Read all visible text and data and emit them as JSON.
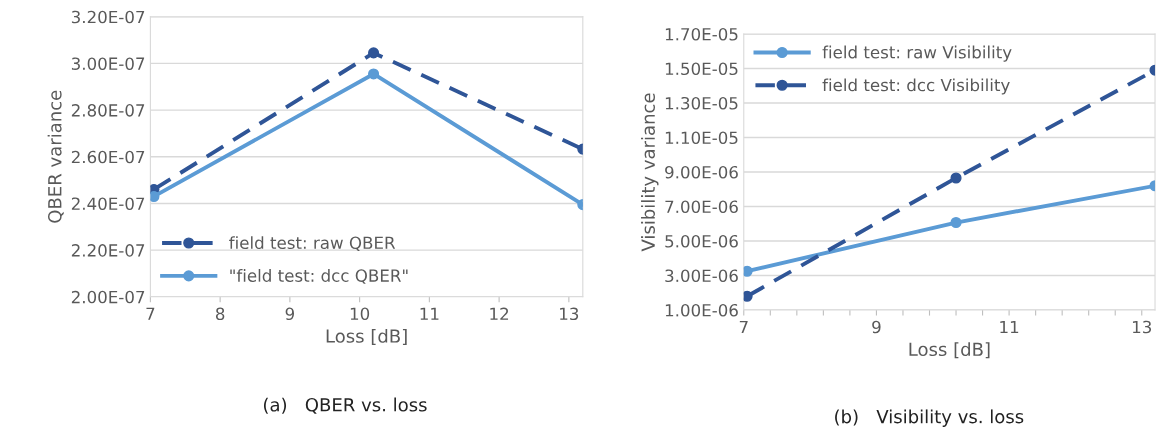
{
  "chart_data": [
    {
      "type": "line",
      "xlabel": "Loss [dB]",
      "ylabel": "QBER variance",
      "annotations": [
        "(a)   QBER vs. loss"
      ],
      "xlim": [
        7,
        13.2
      ],
      "xticks": [
        7,
        8,
        9,
        10,
        11,
        12,
        13
      ],
      "ylim": [
        2e-07,
        3.2e-07
      ],
      "yticks": [
        {
          "value": 2e-07,
          "label": "2.00E-07"
        },
        {
          "value": 2.2e-07,
          "label": "2.20E-07"
        },
        {
          "value": 2.4e-07,
          "label": "2.40E-07"
        },
        {
          "value": 2.6e-07,
          "label": "2.60E-07"
        },
        {
          "value": 2.8e-07,
          "label": "2.80E-07"
        },
        {
          "value": 3e-07,
          "label": "3.00E-07"
        },
        {
          "value": 3.2e-07,
          "label": "3.20E-07"
        }
      ],
      "grid": "y",
      "legend": "bottom left",
      "marker": "circle",
      "series": [
        {
          "name": "field test: raw QBER",
          "color": "#2f5597",
          "line_style": "dashed",
          "x": [
            7.05,
            10.2,
            13.2
          ],
          "values": [
            2.46e-07,
            3.045e-07,
            2.633e-07
          ]
        },
        {
          "name": "\"field test: dcc QBER\"",
          "color": "#5b9bd5",
          "line_style": "solid",
          "x": [
            7.05,
            10.2,
            13.2
          ],
          "values": [
            2.43e-07,
            2.955e-07,
            2.395e-07
          ]
        }
      ]
    },
    {
      "type": "line",
      "xlabel": "Loss [dB]",
      "ylabel": "Visibility variance",
      "annotations": [
        "(b)   Visibility vs. loss"
      ],
      "xlim": [
        7,
        13.2
      ],
      "xticks": [
        7,
        {
          "value": 7.4,
          "label": null
        },
        {
          "value": 7.8,
          "label": null
        },
        {
          "value": 8.2,
          "label": null
        },
        {
          "value": 8.6,
          "label": null
        },
        9,
        {
          "value": 9.4,
          "label": null
        },
        {
          "value": 9.8,
          "label": null
        },
        {
          "value": 10.2,
          "label": null
        },
        {
          "value": 10.6,
          "label": null
        },
        11,
        {
          "value": 11.4,
          "label": null
        },
        {
          "value": 11.8,
          "label": null
        },
        {
          "value": 12.2,
          "label": null
        },
        {
          "value": 12.6,
          "label": null
        },
        13
      ],
      "ylim": [
        1e-06,
        1.7e-05
      ],
      "yticks": [
        {
          "value": 1e-06,
          "label": "1.00E-06"
        },
        {
          "value": 3e-06,
          "label": "3.00E-06"
        },
        {
          "value": 5e-06,
          "label": "5.00E-06"
        },
        {
          "value": 7e-06,
          "label": "7.00E-06"
        },
        {
          "value": 9e-06,
          "label": "9.00E-06"
        },
        {
          "value": 1.1e-05,
          "label": "1.10E-05"
        },
        {
          "value": 1.3e-05,
          "label": "1.30E-05"
        },
        {
          "value": 1.5e-05,
          "label": "1.50E-05"
        },
        {
          "value": 1.7e-05,
          "label": "1.70E-05"
        }
      ],
      "grid": "y",
      "legend": "top left",
      "marker": "circle",
      "series": [
        {
          "name": "field test: raw Visibility",
          "color": "#5b9bd5",
          "line_style": "solid",
          "x": [
            7.05,
            10.2,
            13.2
          ],
          "values": [
            3.25e-06,
            6.07e-06,
            8.2e-06
          ]
        },
        {
          "name": "field test: dcc Visibility",
          "color": "#2f5597",
          "line_style": "dashed",
          "x": [
            7.05,
            10.2,
            13.2
          ],
          "values": [
            1.8e-06,
            8.65e-06,
            1.49e-05
          ]
        }
      ]
    }
  ]
}
